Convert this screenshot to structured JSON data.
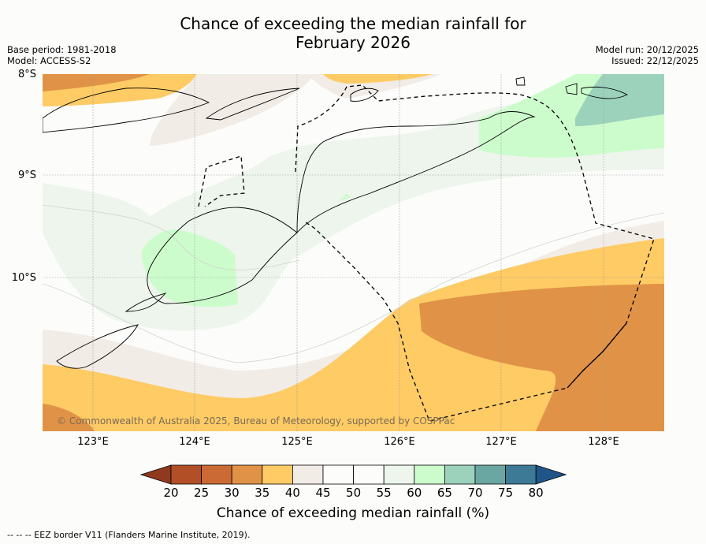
{
  "title": {
    "line1": "Chance of exceeding the median rainfall for",
    "line2": "February 2026"
  },
  "meta_left": {
    "base_period": "Base period: 1981-2018",
    "model": "Model: ACCESS-S2"
  },
  "meta_right": {
    "model_run": "Model run: 20/12/2025",
    "issued": "Issued: 22/12/2025"
  },
  "map": {
    "lat_labels": [
      "8°S",
      "9°S",
      "10°S"
    ],
    "lon_labels": [
      "123°E",
      "124°E",
      "125°E",
      "126°E",
      "127°E",
      "128°E"
    ],
    "copyright": "© Commonwealth of Australia 2025, Bureau of Meteorology, supported by COSPPac"
  },
  "colorbar": {
    "ticks": [
      "20",
      "25",
      "30",
      "35",
      "40",
      "45",
      "50",
      "55",
      "60",
      "65",
      "70",
      "75",
      "80"
    ],
    "colors": [
      "#8f3a1e",
      "#b24f27",
      "#cc6a35",
      "#e09346",
      "#fecb65",
      "#f2ece6",
      "#fcfdfb",
      "#fcfdfb",
      "#edf5ec",
      "#ccfccc",
      "#9cd2bc",
      "#6aa6a2",
      "#3d7a96",
      "#20558a"
    ],
    "label": "Chance of exceeding median rainfall (%)"
  },
  "footnote": "--  --  -- EEZ border V11 (Flanders Marine Institute, 2019)."
}
